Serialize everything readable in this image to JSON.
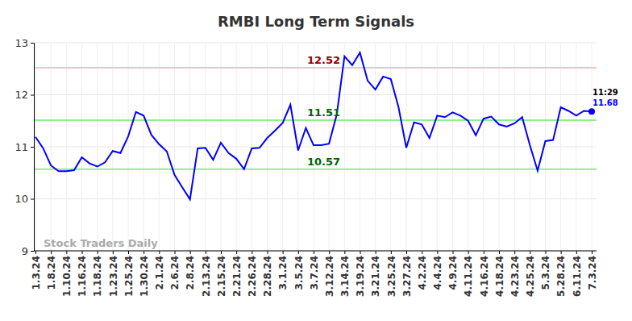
{
  "chart_data": {
    "type": "line",
    "title": "RMBI Long Term Signals",
    "categories": [
      "1.3.24",
      null,
      "1.8.24",
      null,
      "1.10.24",
      null,
      "1.16.24",
      null,
      "1.18.24",
      null,
      "1.23.24",
      null,
      "1.25.24",
      null,
      "1.30.24",
      null,
      "2.1.24",
      null,
      "2.6.24",
      null,
      "2.8.24",
      null,
      "2.13.24",
      null,
      "2.15.24",
      null,
      "2.21.24",
      null,
      "2.26.24",
      null,
      "2.28.24",
      null,
      "3.1.24",
      null,
      "3.5.24",
      null,
      "3.7.24",
      null,
      "3.12.24",
      null,
      "3.14.24",
      null,
      "3.19.24",
      null,
      "3.21.24",
      null,
      "3.25.24",
      null,
      "3.27.24",
      null,
      "4.2.24",
      null,
      "4.4.24",
      null,
      "4.9.24",
      null,
      "4.11.24",
      null,
      "4.16.24",
      null,
      "4.18.24",
      null,
      "4.23.24",
      null,
      "4.25.24",
      null,
      "5.3.24",
      null,
      "5.28.24",
      null,
      "6.11.24",
      null,
      "7.3.24"
    ],
    "values": [
      11.19,
      10.97,
      10.64,
      10.53,
      10.53,
      10.55,
      10.8,
      10.68,
      10.62,
      10.7,
      10.92,
      10.88,
      11.2,
      11.67,
      11.6,
      11.23,
      11.05,
      10.91,
      10.46,
      10.22,
      9.99,
      10.97,
      10.98,
      10.75,
      11.08,
      10.88,
      10.77,
      10.57,
      10.97,
      10.98,
      11.17,
      11.31,
      11.46,
      11.81,
      10.93,
      11.36,
      11.03,
      11.03,
      11.06,
      11.62,
      12.74,
      12.57,
      12.81,
      12.27,
      12.1,
      12.35,
      12.3,
      11.76,
      10.98,
      11.47,
      11.43,
      11.17,
      11.6,
      11.57,
      11.66,
      11.6,
      11.5,
      11.22,
      11.54,
      11.58,
      11.43,
      11.39,
      11.45,
      11.57,
      11.03,
      10.54,
      11.11,
      11.13,
      11.76,
      11.69,
      11.6,
      11.69,
      11.68
    ],
    "color": "#0000ff",
    "ylim": [
      9,
      13
    ],
    "yticks": [
      9,
      10,
      11,
      12,
      13
    ],
    "grid": true,
    "reference_lines": [
      {
        "value": 12.52,
        "label": "12.52",
        "color": "#ffc0cb",
        "label_color": "#8b0000"
      },
      {
        "value": 11.51,
        "label": "11.51",
        "color": "#90ee90",
        "label_color": "#006400"
      },
      {
        "value": 10.57,
        "label": "10.57",
        "color": "#90ee90",
        "label_color": "#006400"
      }
    ],
    "last_point": {
      "time": "11:29",
      "label": "11.68"
    },
    "watermark": "Stock Traders Daily"
  }
}
